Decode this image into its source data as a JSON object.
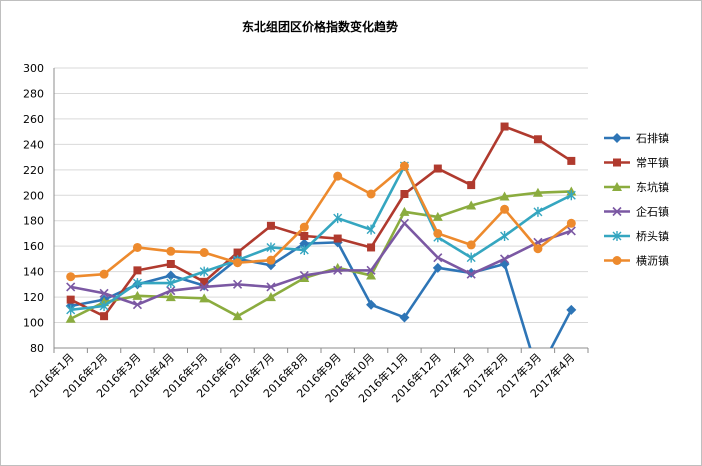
{
  "chart_data": {
    "type": "line",
    "title": "东北组团区价格指数变化趋势",
    "xlabel": "",
    "ylabel": "",
    "ylim": [
      80,
      300
    ],
    "yticks": [
      80,
      100,
      120,
      140,
      160,
      180,
      200,
      220,
      240,
      260,
      280,
      300
    ],
    "grid": "horizontal",
    "legend": "right",
    "categories": [
      "2016年1月",
      "2016年2月",
      "2016年3月",
      "2016年4月",
      "2016年5月",
      "2016年6月",
      "2016年7月",
      "2016年8月",
      "2016年9月",
      "2016年10月",
      "2016年11月",
      "2016年12月",
      "2017年1月",
      "2017年2月",
      "2017年3月",
      "2017年4月"
    ],
    "series": [
      {
        "name": "石排镇",
        "color": "#2e75b6",
        "marker": "diamond",
        "values": [
          113,
          118,
          130,
          137,
          129,
          150,
          145,
          162,
          163,
          114,
          104,
          143,
          139,
          146,
          60,
          110
        ]
      },
      {
        "name": "常平镇",
        "color": "#b03a2e",
        "marker": "square",
        "values": [
          118,
          105,
          141,
          146,
          132,
          155,
          176,
          168,
          166,
          159,
          201,
          221,
          208,
          254,
          244,
          227
        ]
      },
      {
        "name": "东坑镇",
        "color": "#8bac3f",
        "marker": "triangle",
        "values": [
          103,
          116,
          121,
          120,
          119,
          105,
          120,
          135,
          143,
          137,
          187,
          183,
          192,
          199,
          202,
          203
        ]
      },
      {
        "name": "企石镇",
        "color": "#7b58a3",
        "marker": "x",
        "values": [
          128,
          123,
          114,
          125,
          128,
          130,
          128,
          137,
          141,
          141,
          178,
          151,
          138,
          150,
          163,
          172
        ]
      },
      {
        "name": "桥头镇",
        "color": "#35a6c0",
        "marker": "star",
        "values": [
          110,
          113,
          131,
          131,
          140,
          149,
          159,
          157,
          182,
          173,
          223,
          167,
          151,
          168,
          187,
          200
        ]
      },
      {
        "name": "横沥镇",
        "color": "#ed8a2d",
        "marker": "circle",
        "values": [
          136,
          138,
          159,
          156,
          155,
          147,
          149,
          175,
          215,
          201,
          223,
          170,
          161,
          189,
          158,
          178
        ]
      }
    ]
  }
}
